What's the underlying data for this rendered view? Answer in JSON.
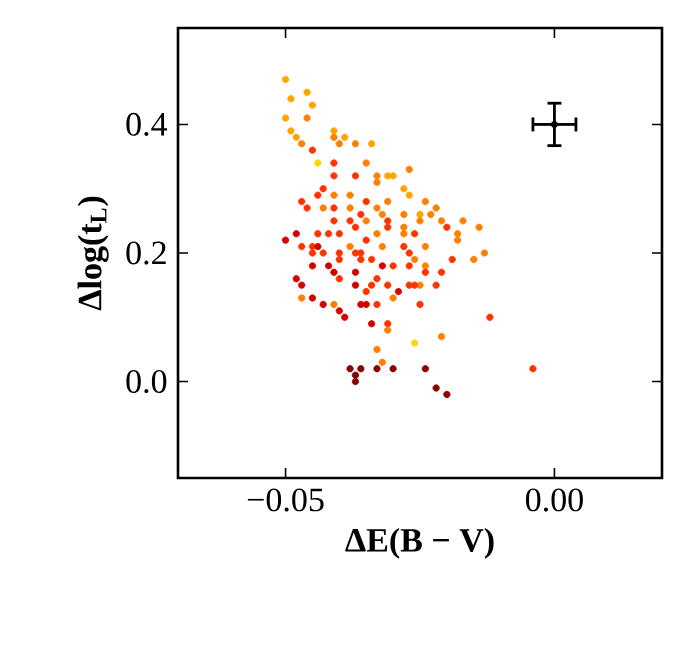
{
  "chart_data": {
    "type": "scatter",
    "xlabel": "ΔE(B − V)",
    "ylabel": "Δlog(t$_{L}$)",
    "xlim": [
      -0.07,
      0.02
    ],
    "ylim": [
      -0.15,
      0.55
    ],
    "xticks": [
      {
        "value": -0.05,
        "label": "−0.05"
      },
      {
        "value": 0,
        "label": "0.00"
      }
    ],
    "yticks": [
      {
        "value": 0,
        "label": "0.0"
      },
      0.2,
      0.4
    ],
    "series": [
      {
        "x": [
          -0.05,
          -0.046,
          -0.049,
          -0.045,
          -0.05,
          -0.046,
          -0.049,
          -0.041,
          -0.048,
          -0.047,
          -0.041,
          -0.04,
          -0.039,
          -0.037,
          -0.034,
          -0.045,
          -0.041,
          -0.044,
          -0.035,
          -0.027,
          -0.03,
          -0.033,
          -0.031,
          -0.037,
          -0.041,
          -0.033,
          -0.028,
          -0.043,
          -0.027,
          -0.044,
          -0.041,
          -0.038,
          -0.024,
          -0.047,
          -0.041,
          -0.038,
          -0.035,
          -0.033,
          -0.031,
          -0.028,
          -0.025,
          -0.043,
          -0.046,
          -0.036,
          -0.032,
          -0.041,
          -0.038,
          -0.035,
          -0.031,
          -0.028,
          -0.025,
          -0.048,
          -0.044,
          -0.04,
          -0.037,
          -0.033,
          -0.031,
          -0.028,
          -0.026,
          -0.05,
          -0.042,
          -0.035,
          -0.038,
          -0.045,
          -0.043,
          -0.04,
          -0.036,
          -0.032,
          -0.028,
          -0.023,
          -0.047,
          -0.044,
          -0.045,
          -0.037,
          -0.034,
          -0.027,
          -0.024,
          -0.045,
          -0.042,
          -0.04,
          -0.036,
          -0.032,
          -0.03,
          -0.027,
          -0.024,
          -0.041,
          -0.037,
          -0.033,
          -0.04,
          -0.048,
          -0.031,
          -0.027,
          -0.025,
          -0.047,
          -0.037,
          -0.035,
          -0.034,
          -0.029,
          -0.03,
          -0.047,
          -0.045,
          -0.043,
          -0.041,
          -0.04,
          -0.039,
          -0.036,
          -0.035,
          -0.033,
          -0.034,
          -0.031,
          -0.031,
          -0.026,
          -0.033,
          -0.032,
          -0.038,
          -0.036,
          -0.037,
          -0.037,
          -0.033,
          -0.03,
          -0.024,
          -0.022,
          -0.022,
          -0.021,
          -0.017,
          -0.02,
          -0.014,
          -0.018,
          -0.018,
          -0.013,
          -0.015,
          -0.019,
          -0.026,
          -0.024,
          -0.021,
          -0.026,
          -0.022,
          -0.025,
          -0.012,
          -0.021,
          -0.004,
          -0.02
        ],
        "values": [
          0.47,
          0.45,
          0.44,
          0.43,
          0.41,
          0.41,
          0.39,
          0.39,
          0.38,
          0.37,
          0.38,
          0.37,
          0.38,
          0.37,
          0.37,
          0.36,
          0.34,
          0.34,
          0.34,
          0.33,
          0.32,
          0.32,
          0.32,
          0.32,
          0.32,
          0.31,
          0.3,
          0.3,
          0.29,
          0.29,
          0.29,
          0.29,
          0.28,
          0.28,
          0.27,
          0.27,
          0.28,
          0.27,
          0.28,
          0.26,
          0.26,
          0.27,
          0.27,
          0.26,
          0.26,
          0.25,
          0.25,
          0.25,
          0.25,
          0.24,
          0.25,
          0.23,
          0.23,
          0.23,
          0.24,
          0.23,
          0.24,
          0.23,
          0.23,
          0.22,
          0.23,
          0.22,
          0.21,
          0.21,
          0.2,
          0.2,
          0.2,
          0.21,
          0.21,
          0.26,
          0.21,
          0.21,
          0.2,
          0.2,
          0.19,
          0.2,
          0.21,
          0.18,
          0.18,
          0.19,
          0.19,
          0.18,
          0.18,
          0.18,
          0.18,
          0.17,
          0.17,
          0.16,
          0.16,
          0.16,
          0.15,
          0.15,
          0.15,
          0.15,
          0.15,
          0.14,
          0.15,
          0.14,
          0.13,
          0.13,
          0.13,
          0.12,
          0.12,
          0.11,
          0.1,
          0.12,
          0.12,
          0.12,
          0.09,
          0.09,
          0.08,
          0.06,
          0.05,
          0.03,
          0.02,
          0.02,
          0.01,
          0.0,
          0.02,
          0.02,
          0.02,
          -0.01,
          0.27,
          0.25,
          0.25,
          0.24,
          0.24,
          0.23,
          0.22,
          0.2,
          0.19,
          0.19,
          0.19,
          0.17,
          0.17,
          0.15,
          0.15,
          0.12,
          0.1,
          0.07,
          0.02,
          -0.02
        ],
        "colors": [
          "#ffa500",
          "#ffa500",
          "#ffa500",
          "#ffa500",
          "#ffa500",
          "#ff7f00",
          "#ffa500",
          "#ffa500",
          "#ffa500",
          "#ff7f00",
          "#ff7f00",
          "#ff7f00",
          "#ffa500",
          "#ff7f00",
          "#ffa500",
          "#ff3300",
          "#ff3300",
          "#ffd700",
          "#ff7f00",
          "#ff7f00",
          "#ffa500",
          "#ff7f00",
          "#ffa500",
          "#ff3300",
          "#ff3300",
          "#ff7f00",
          "#ffa500",
          "#ff3300",
          "#ffa500",
          "#ff3300",
          "#ff7f00",
          "#ff7f00",
          "#ff7f00",
          "#ff3300",
          "#ff3300",
          "#ff7f00",
          "#ff3300",
          "#ff7f00",
          "#ff7f00",
          "#ff7f00",
          "#ffa500",
          "#ff7f00",
          "#ff3300",
          "#ff3300",
          "#ff7f00",
          "#ff3300",
          "#ff3300",
          "#ff7f00",
          "#ff3300",
          "#ff7f00",
          "#ff7f00",
          "#d40000",
          "#ff3300",
          "#ff3300",
          "#ff3300",
          "#ff7f00",
          "#ff3300",
          "#ff7f00",
          "#ff3300",
          "#d40000",
          "#ff3300",
          "#ff3300",
          "#ff7f00",
          "#ff3300",
          "#ff3300",
          "#ff3300",
          "#ff3300",
          "#ff7f00",
          "#ff3300",
          "#ff7f00",
          "#ff3300",
          "#d40000",
          "#ff3300",
          "#ff3300",
          "#ff3300",
          "#ff3300",
          "#ff7f00",
          "#d40000",
          "#d40000",
          "#ff3300",
          "#ff3300",
          "#d40000",
          "#ff3300",
          "#ff3300",
          "#ff7f00",
          "#d40000",
          "#d40000",
          "#ff3300",
          "#ff3300",
          "#d40000",
          "#ff3300",
          "#ff3300",
          "#ff7f00",
          "#d40000",
          "#d40000",
          "#ff3300",
          "#ff3300",
          "#d40000",
          "#ff7f00",
          "#ff7f00",
          "#d40000",
          "#d40000",
          "#ff7f00",
          "#d40000",
          "#d40000",
          "#d40000",
          "#d40000",
          "#ff3300",
          "#d40000",
          "#ff3300",
          "#ff7f00",
          "#ffd700",
          "#ff7f00",
          "#ff7f00",
          "#8b0000",
          "#8b0000",
          "#8b0000",
          "#8b0000",
          "#8b0000",
          "#8b0000",
          "#8b0000",
          "#8b0000",
          "#ff7f00",
          "#ff7f00",
          "#ff7f00",
          "#ff3300",
          "#ff7f00",
          "#ff7f00",
          "#ff7f00",
          "#ff7f00",
          "#ff7f00",
          "#ff3300",
          "#ff7f00",
          "#ff3300",
          "#ff3300",
          "#ff3300",
          "#ff3300",
          "#ff3300",
          "#ff3300",
          "#ff7f00",
          "#ff3300",
          "#8b0000"
        ]
      },
      {
        "color": "#000000",
        "x": [
          0
        ],
        "values": [
          0.4
        ],
        "errors": [
          0.033
        ],
        "xerrors": [
          0.004
        ]
      }
    ]
  }
}
